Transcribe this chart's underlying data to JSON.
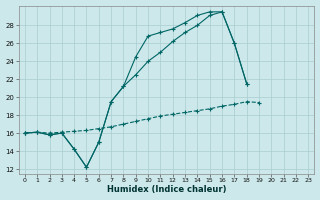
{
  "xlabel": "Humidex (Indice chaleur)",
  "background_color": "#cce8ea",
  "line_color": "#006666",
  "grid_color": "#aacdd0",
  "xlim": [
    -0.5,
    23.5
  ],
  "ylim": [
    11.5,
    30.2
  ],
  "xticks": [
    0,
    1,
    2,
    3,
    4,
    5,
    6,
    7,
    8,
    9,
    10,
    11,
    12,
    13,
    14,
    15,
    16,
    17,
    18,
    19,
    20,
    21,
    22,
    23
  ],
  "yticks": [
    12,
    14,
    16,
    18,
    20,
    22,
    24,
    26,
    28
  ],
  "line1_x": [
    0,
    1,
    2,
    3,
    4,
    5,
    6,
    7,
    8,
    9,
    10,
    11,
    12,
    13,
    14,
    15,
    16,
    17,
    18,
    19,
    20,
    21
  ],
  "line1_y": [
    16.0,
    16.1,
    15.8,
    16.0,
    14.2,
    12.2,
    15.0,
    19.5,
    21.2,
    24.5,
    26.8,
    27.2,
    27.6,
    28.3,
    29.1,
    29.5,
    29.5,
    26.0,
    21.5,
    null,
    null,
    null
  ],
  "line2_x": [
    0,
    1,
    2,
    3,
    4,
    5,
    6,
    7,
    8,
    9,
    10,
    11,
    12,
    13,
    14,
    15,
    16,
    17,
    18,
    19,
    20,
    21
  ],
  "line2_y": [
    16.0,
    16.1,
    15.8,
    16.0,
    14.2,
    12.2,
    15.0,
    19.5,
    21.2,
    22.5,
    24.0,
    25.0,
    26.2,
    27.2,
    28.0,
    29.1,
    29.5,
    26.0,
    21.5,
    null,
    null,
    null
  ],
  "line3_x": [
    0,
    1,
    2,
    3,
    4,
    5,
    6,
    7,
    8,
    9,
    10,
    11,
    12,
    13,
    14,
    15,
    16,
    17,
    18,
    19,
    20,
    21,
    22,
    23
  ],
  "line3_y": [
    16.0,
    16.1,
    16.0,
    16.1,
    16.2,
    16.3,
    16.5,
    16.7,
    17.0,
    17.3,
    17.6,
    17.9,
    18.1,
    18.3,
    18.5,
    18.7,
    19.0,
    19.2,
    19.5,
    19.4,
    null,
    null,
    null,
    null
  ]
}
